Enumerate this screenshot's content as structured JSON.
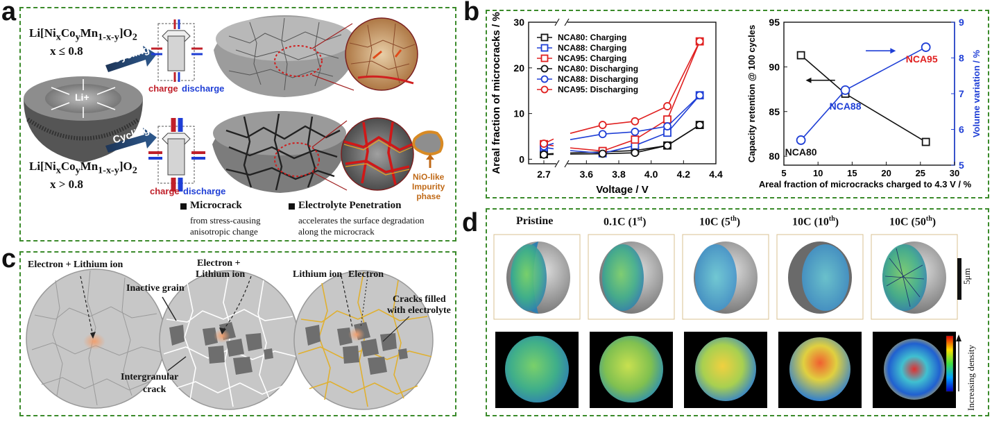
{
  "panel_labels": {
    "a": "a",
    "b": "b",
    "c": "c",
    "d": "d"
  },
  "panel_a": {
    "formula_top": "Li[Ni",
    "formula_top_full": "Li[NixCoyMn1-x-y]O2",
    "cond_top": "x ≤ 0.8",
    "cond_bottom": "x > 0.8",
    "center_ion": "Li+",
    "cycling": "Cycling",
    "charge": "charge",
    "discharge": "discharge",
    "impurity": "NiO-like Impurity phase",
    "impurity_l1": "NiO-like",
    "impurity_l2": "Impurity",
    "impurity_l3": "phase",
    "legend_microcrack": "Microcrack",
    "legend_microcrack_desc1": "from stress-causing",
    "legend_microcrack_desc2": "anisotropic change",
    "legend_electrolyte": "Electrolyte Penetration",
    "legend_electrolyte_desc1": "accelerates the surface degradation",
    "legend_electrolyte_desc2": "along the microcrack"
  },
  "panel_c": {
    "electron_lithium_1": "Electron + Lithium ion",
    "inactive_grain": "Inactive grain",
    "electron_plus": "Electron +",
    "lithium_ion": "Lithium ion",
    "intergranular_1": "Intergranular",
    "intergranular_2": "crack",
    "lithium_ion_3": "Lithium ion",
    "electron_3": "Electron",
    "cracks_1": "Cracks filled",
    "cracks_2": "with electrolyte"
  },
  "panel_d": {
    "headers": [
      "Pristine",
      "0.1C (1",
      "10C (5",
      "10C (10",
      "10C (50"
    ],
    "sup": [
      "",
      "st",
      "th",
      "th",
      "th"
    ],
    "scale_label": "5μm",
    "density_label": "Increasing density"
  },
  "chart_data": [
    {
      "type": "line",
      "xlabel": "Voltage / V",
      "ylabel": "Areal fraction of microcracks / %",
      "xlim": [
        2.7,
        4.4
      ],
      "ylim": [
        -1,
        30
      ],
      "x_ticks": [
        "2.7",
        "3.6",
        "3.8",
        "4.0",
        "4.2",
        "4.4"
      ],
      "y_ticks": [
        "0",
        "10",
        "20",
        "30"
      ],
      "legend_position": "top-left",
      "series": [
        {
          "name": "NCA80: Charging",
          "color": "#111111",
          "marker": "square",
          "x": [
            2.7,
            3.7,
            3.9,
            4.1,
            4.3
          ],
          "values": [
            1.1,
            1.6,
            1.9,
            3.0,
            7.5
          ]
        },
        {
          "name": "NCA88: Charging",
          "color": "#1f3fd6",
          "marker": "square",
          "x": [
            2.7,
            3.7,
            3.9,
            4.1,
            4.3
          ],
          "values": [
            2.6,
            1.3,
            3.0,
            5.8,
            14.0
          ]
        },
        {
          "name": "NCA95: Charging",
          "color": "#e02020",
          "marker": "square",
          "x": [
            2.7,
            3.7,
            3.9,
            4.1,
            4.3
          ],
          "values": [
            3.3,
            1.8,
            4.3,
            8.7,
            25.8
          ]
        },
        {
          "name": "NCA80: Discharging",
          "color": "#111111",
          "marker": "circle",
          "x": [
            2.7,
            3.7,
            3.9,
            4.1,
            4.3
          ],
          "values": [
            1.0,
            1.2,
            1.4,
            3.0,
            7.5
          ]
        },
        {
          "name": "NCA88: Discharging",
          "color": "#1f3fd6",
          "marker": "circle",
          "x": [
            2.7,
            3.7,
            3.9,
            4.1,
            4.3
          ],
          "values": [
            2.8,
            5.5,
            6.0,
            7.2,
            14.0
          ]
        },
        {
          "name": "NCA95: Discharging",
          "color": "#e02020",
          "marker": "circle",
          "x": [
            2.7,
            3.7,
            3.9,
            4.1,
            4.3
          ],
          "values": [
            3.4,
            7.5,
            8.3,
            11.6,
            25.8
          ]
        }
      ]
    },
    {
      "type": "line",
      "xlabel": "Areal fraction of microcracks charged to 4.3 V / %",
      "ylabel": "Capacity retention @ 100 cycles",
      "y2label": "Volume variation / %",
      "xlim": [
        5,
        30
      ],
      "ylim": [
        79,
        95
      ],
      "y2lim": [
        5,
        9
      ],
      "x_ticks": [
        "5",
        "10",
        "15",
        "20",
        "25",
        "30"
      ],
      "y_ticks": [
        "80",
        "85",
        "90",
        "95"
      ],
      "y2_ticks": [
        "5",
        "6",
        "7",
        "8",
        "9"
      ],
      "series": [
        {
          "name": "Capacity retention",
          "color": "#111111",
          "marker": "square",
          "axis": "left",
          "x": [
            7.5,
            14.0,
            25.8
          ],
          "values": [
            91.3,
            87.0,
            81.6
          ]
        },
        {
          "name": "Volume variation",
          "color": "#1f3fd6",
          "marker": "circle",
          "axis": "right",
          "x": [
            7.5,
            14.0,
            25.8
          ],
          "values": [
            5.7,
            7.1,
            8.3
          ]
        }
      ],
      "point_labels": [
        {
          "text": "NCA80",
          "color": "#111111"
        },
        {
          "text": "NCA88",
          "color": "#1f3fd6"
        },
        {
          "text": "NCA95",
          "color": "#e02020"
        }
      ]
    }
  ]
}
